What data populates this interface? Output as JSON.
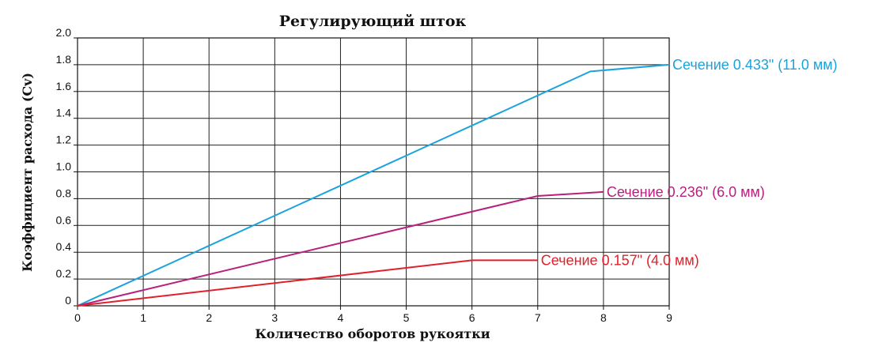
{
  "chart_data": {
    "type": "line",
    "title": "Регулирующий шток",
    "xlabel": "Количество оборотов рукоятки",
    "ylabel": "Коэффициент расхода (Cv)",
    "xlim": [
      0,
      9
    ],
    "ylim": [
      0,
      2.0
    ],
    "x_ticks": [
      "0",
      "1",
      "2",
      "3",
      "4",
      "5",
      "6",
      "7",
      "8",
      "9"
    ],
    "y_ticks": [
      "0",
      "0.2",
      "0.4",
      "0.6",
      "0.8",
      "1.0",
      "1.2",
      "1.4",
      "1.6",
      "1.8",
      "2.0"
    ],
    "grid": true,
    "series": [
      {
        "name": "Сечение 0.433\" (11.0 мм)",
        "color": "#1aa3dc",
        "x": [
          0,
          7.8,
          9
        ],
        "y": [
          0,
          1.75,
          1.8
        ]
      },
      {
        "name": "Сечение 0.236\" (6.0 мм)",
        "color": "#b8207e",
        "x": [
          0,
          7,
          8
        ],
        "y": [
          0,
          0.82,
          0.85
        ]
      },
      {
        "name": "Сечение 0.157\" (4.0 мм)",
        "color": "#e0202a",
        "x": [
          0,
          6,
          7
        ],
        "y": [
          0,
          0.34,
          0.34
        ]
      }
    ]
  }
}
